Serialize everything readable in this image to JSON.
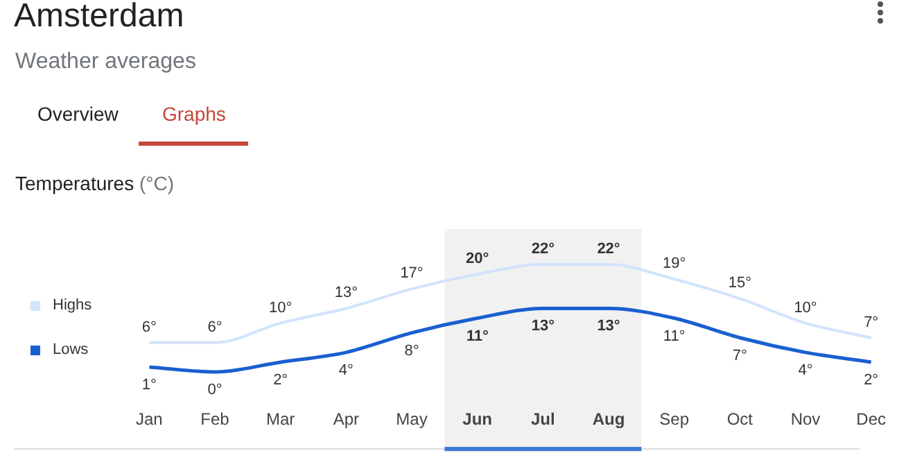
{
  "chart_data": {
    "type": "line",
    "title": "Amsterdam",
    "subtitle": "Weather averages",
    "ylabel": "Temperatures (°C)",
    "annotations": [
      "Overview",
      "Graphs"
    ],
    "categories": [
      "Jan",
      "Feb",
      "Mar",
      "Apr",
      "May",
      "Jun",
      "Jul",
      "Aug",
      "Sep",
      "Oct",
      "Nov",
      "Dec"
    ],
    "series": [
      {
        "name": "Highs",
        "color": "#d2e3fc",
        "values": [
          6,
          6,
          10,
          13,
          17,
          20,
          22,
          22,
          19,
          15,
          10,
          7
        ],
        "value_labels": [
          "6°",
          "6°",
          "10°",
          "13°",
          "17°",
          "20°",
          "22°",
          "22°",
          "19°",
          "15°",
          "10°",
          "7°"
        ]
      },
      {
        "name": "Lows",
        "color": "#1a5fd0",
        "values": [
          1,
          0,
          2,
          4,
          8,
          11,
          13,
          13,
          11,
          7,
          4,
          2
        ],
        "value_labels": [
          "1°",
          "0°",
          "2°",
          "4°",
          "8°",
          "11°",
          "13°",
          "13°",
          "11°",
          "7°",
          "4°",
          "2°"
        ]
      }
    ],
    "bands": [
      {
        "axis": "x",
        "from": "Jun",
        "to": "Aug",
        "color": "#f1f1f1"
      }
    ],
    "legend": "left",
    "tick_labels": "x",
    "grid": false,
    "marker": "none",
    "line_style": "solid"
  }
}
